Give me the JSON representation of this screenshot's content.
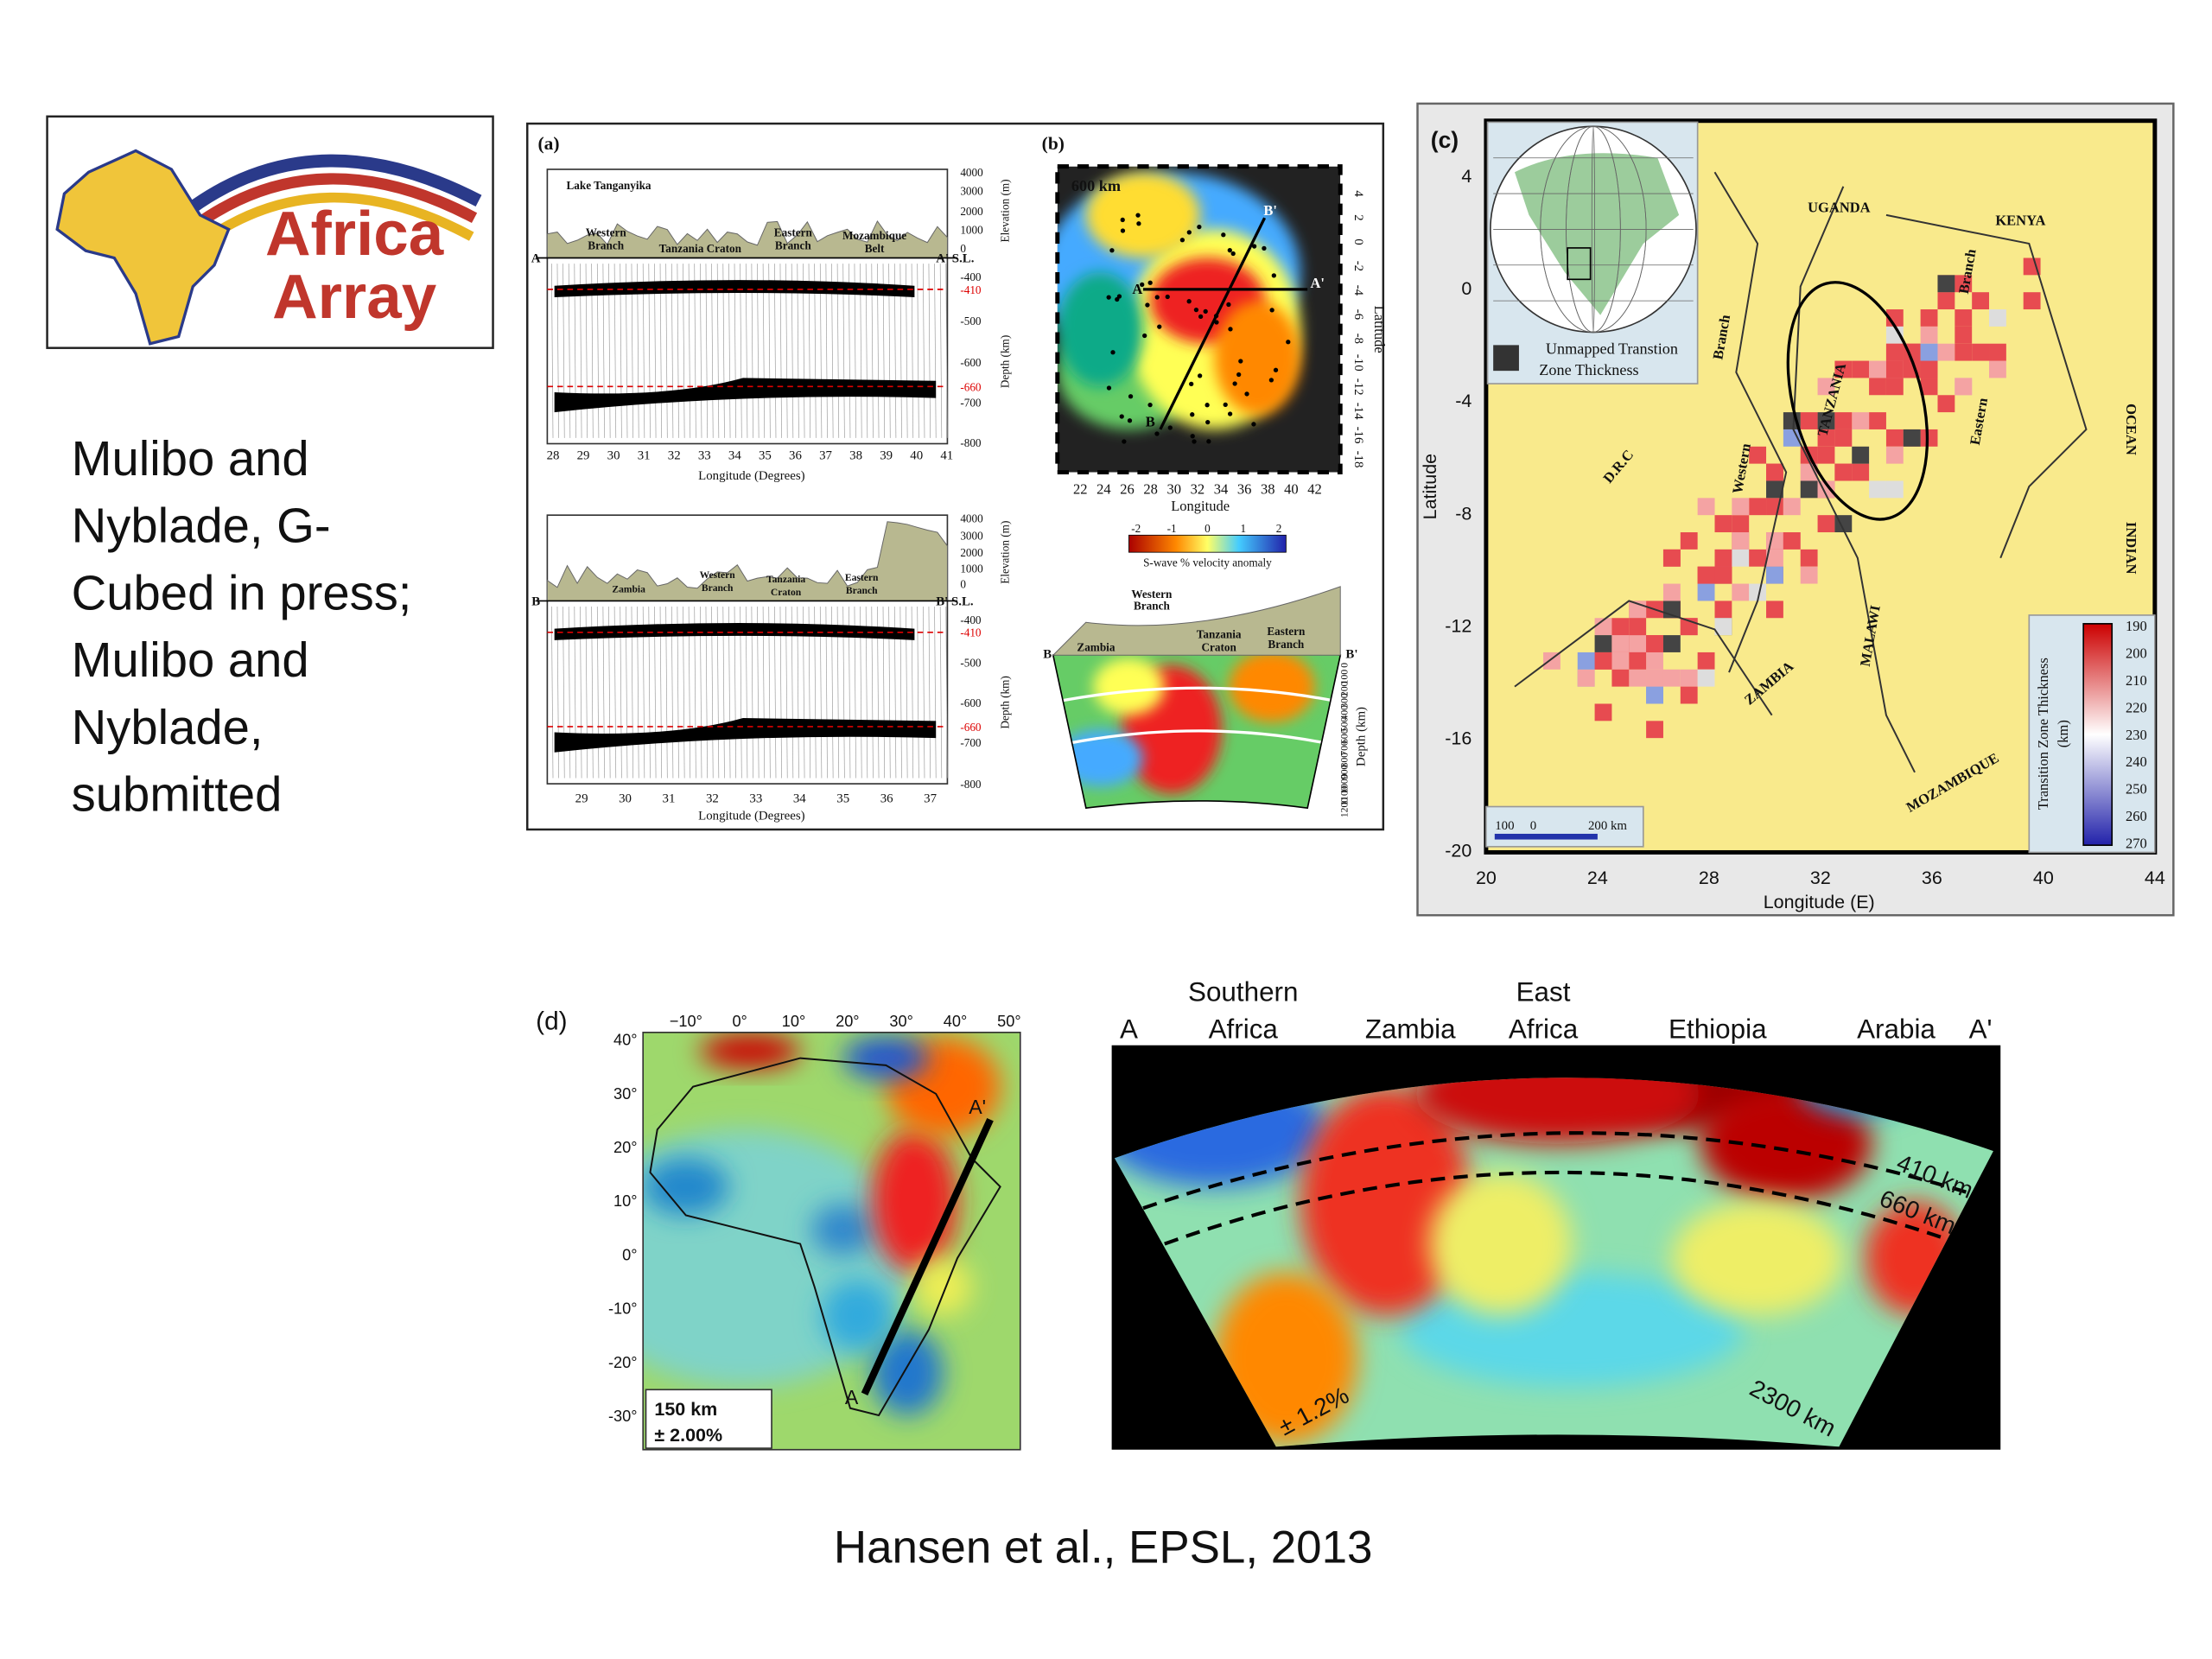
{
  "logo": {
    "line1": "Africa",
    "line2": "Array"
  },
  "citations": {
    "left": [
      "Mulibo and",
      "Nyblade, G-",
      "Cubed in press;",
      "Mulibo and",
      "Nyblade,",
      "submitted"
    ],
    "bottom": "Hansen et al., EPSL, 2013"
  },
  "panel_a": {
    "label": "(a)",
    "top": {
      "labels": [
        "Lake Tanganyika",
        "Western",
        "Branch",
        "Tanzania Craton",
        "Eastern",
        "Branch",
        "Mozambique",
        "Belt"
      ],
      "start": "A",
      "end": "A' S.L.",
      "elevation_ticks": [
        4000,
        3000,
        2000,
        1000,
        0
      ],
      "elevation_label": "Elevation (m)",
      "depth_ticks": [
        -400,
        -410,
        -500,
        -600,
        -660,
        -700,
        -800
      ],
      "depth_label": "Depth (km)",
      "x_ticks": [
        28,
        29,
        30,
        31,
        32,
        33,
        34,
        35,
        36,
        37,
        38,
        39,
        40,
        41
      ],
      "x_label": "Longitude (Degrees)"
    },
    "bottom": {
      "labels": [
        "Zambia",
        "Western",
        "Branch",
        "Tanzania",
        "Craton",
        "Eastern",
        "Branch"
      ],
      "start": "B",
      "end": "B' S.L.",
      "elevation_ticks": [
        4000,
        3000,
        2000,
        1000,
        0
      ],
      "elevation_label": "Elevation (m)",
      "depth_ticks": [
        -400,
        -410,
        -500,
        -600,
        -660,
        -700,
        -800
      ],
      "depth_label": "Depth (km)",
      "x_ticks": [
        29,
        30,
        31,
        32,
        33,
        34,
        35,
        36,
        37
      ],
      "x_label": "Longitude (Degrees)"
    }
  },
  "panel_b": {
    "label": "(b)",
    "map_label": "600 km",
    "points": [
      "A",
      "A'",
      "B",
      "B'"
    ],
    "x_ticks": [
      22,
      24,
      26,
      28,
      30,
      32,
      34,
      36,
      38,
      40,
      42
    ],
    "x_label": "Longitude",
    "y_ticks": [
      4,
      2,
      0,
      -2,
      -4,
      -6,
      -8,
      -10,
      -12,
      -14,
      -16,
      -18
    ],
    "y_label": "Latitude",
    "colorbar_ticks": [
      -2,
      -1,
      0,
      1,
      2
    ],
    "colorbar_label": "S-wave % velocity anomaly",
    "section": {
      "labels": [
        "Western",
        "Branch",
        "Zambia",
        "Tanzania",
        "Craton",
        "Eastern",
        "Branch"
      ],
      "ends": [
        "B",
        "B'"
      ],
      "depth_ticks": [
        0,
        100,
        200,
        300,
        400,
        500,
        600,
        700,
        800,
        900,
        1000,
        1100,
        1200
      ],
      "depth_label": "Depth (km)"
    }
  },
  "panel_c": {
    "label": "(c)",
    "y_ticks": [
      4,
      0,
      -4,
      -8,
      -12,
      -16,
      -20
    ],
    "y_label": "Latitude",
    "x_ticks": [
      20,
      24,
      28,
      32,
      36,
      40,
      44
    ],
    "x_label": "Longitude (E)",
    "map_labels": [
      "UGANDA",
      "KENYA",
      "D.R.C",
      "TANZANIA",
      "ZAMBIA",
      "MALAWI",
      "MOZAMBIQUE",
      "INDIAN",
      "OCEAN",
      "Western",
      "Branch",
      "Eastern",
      "Branch"
    ],
    "legend": [
      "Unmapped Transtion",
      "Zone Thickness"
    ],
    "scale": [
      "100",
      "0",
      "200 km"
    ],
    "colorbar_ticks": [
      190,
      200,
      210,
      220,
      230,
      240,
      250,
      260,
      270
    ],
    "colorbar_label": [
      "Transition Zone Thickness",
      "(km)"
    ]
  },
  "panel_d": {
    "label": "(d)",
    "x_ticks": [
      "−10°",
      "0°",
      "10°",
      "20°",
      "30°",
      "40°",
      "50°"
    ],
    "y_ticks": [
      "40°",
      "30°",
      "20°",
      "10°",
      "0°",
      "-10°",
      "-20°",
      "-30°"
    ],
    "ends": [
      "A",
      "A'"
    ],
    "box": [
      "150 km",
      "± 2.00%"
    ]
  },
  "section_d": {
    "top_labels": [
      "A",
      "Southern",
      "Africa",
      "Zambia",
      "East",
      "Africa",
      "Ethiopia",
      "Arabia",
      "A'"
    ],
    "depth_labels": [
      "410 km",
      "660 km"
    ],
    "scale": "± 1.2%",
    "width": "2300 km"
  }
}
